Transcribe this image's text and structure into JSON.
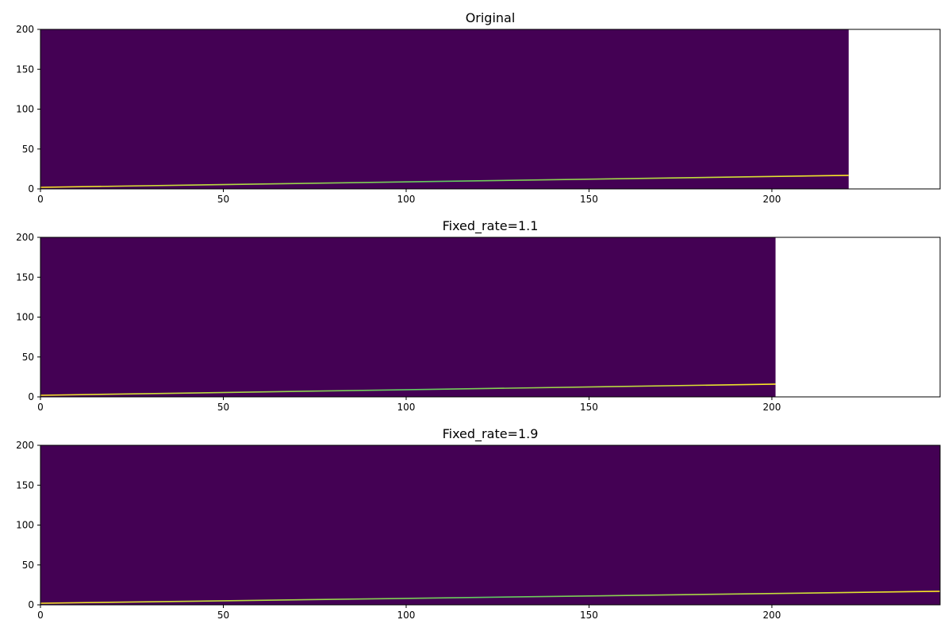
{
  "chart_data": [
    {
      "type": "heatmap",
      "title": "Original",
      "xlabel": "",
      "ylabel": "",
      "xlim": [
        0,
        246
      ],
      "ylim": [
        0,
        200
      ],
      "data_x_extent": [
        0,
        221
      ],
      "xticks": [
        0,
        50,
        100,
        150,
        200
      ],
      "yticks": [
        0,
        50,
        100,
        150,
        200
      ],
      "line": {
        "x": [
          0,
          221
        ],
        "y": [
          2,
          17
        ]
      },
      "grid": false
    },
    {
      "type": "heatmap",
      "title": "Fixed_rate=1.1",
      "xlabel": "",
      "ylabel": "",
      "xlim": [
        0,
        246
      ],
      "ylim": [
        0,
        200
      ],
      "data_x_extent": [
        0,
        201
      ],
      "xticks": [
        0,
        50,
        100,
        150,
        200
      ],
      "yticks": [
        0,
        50,
        100,
        150,
        200
      ],
      "line": {
        "x": [
          0,
          201
        ],
        "y": [
          2,
          16
        ]
      },
      "grid": false
    },
    {
      "type": "heatmap",
      "title": "Fixed_rate=1.9",
      "xlabel": "",
      "ylabel": "",
      "xlim": [
        0,
        246
      ],
      "ylim": [
        0,
        200
      ],
      "data_x_extent": [
        0,
        246
      ],
      "xticks": [
        0,
        50,
        100,
        150,
        200
      ],
      "yticks": [
        0,
        50,
        100,
        150,
        200
      ],
      "line": {
        "x": [
          0,
          246
        ],
        "y": [
          2,
          17
        ]
      },
      "grid": false
    }
  ],
  "colors": {
    "background": "#440154",
    "line_start": "#fde725",
    "line_end": "#5ec962",
    "axes": "#000000"
  }
}
